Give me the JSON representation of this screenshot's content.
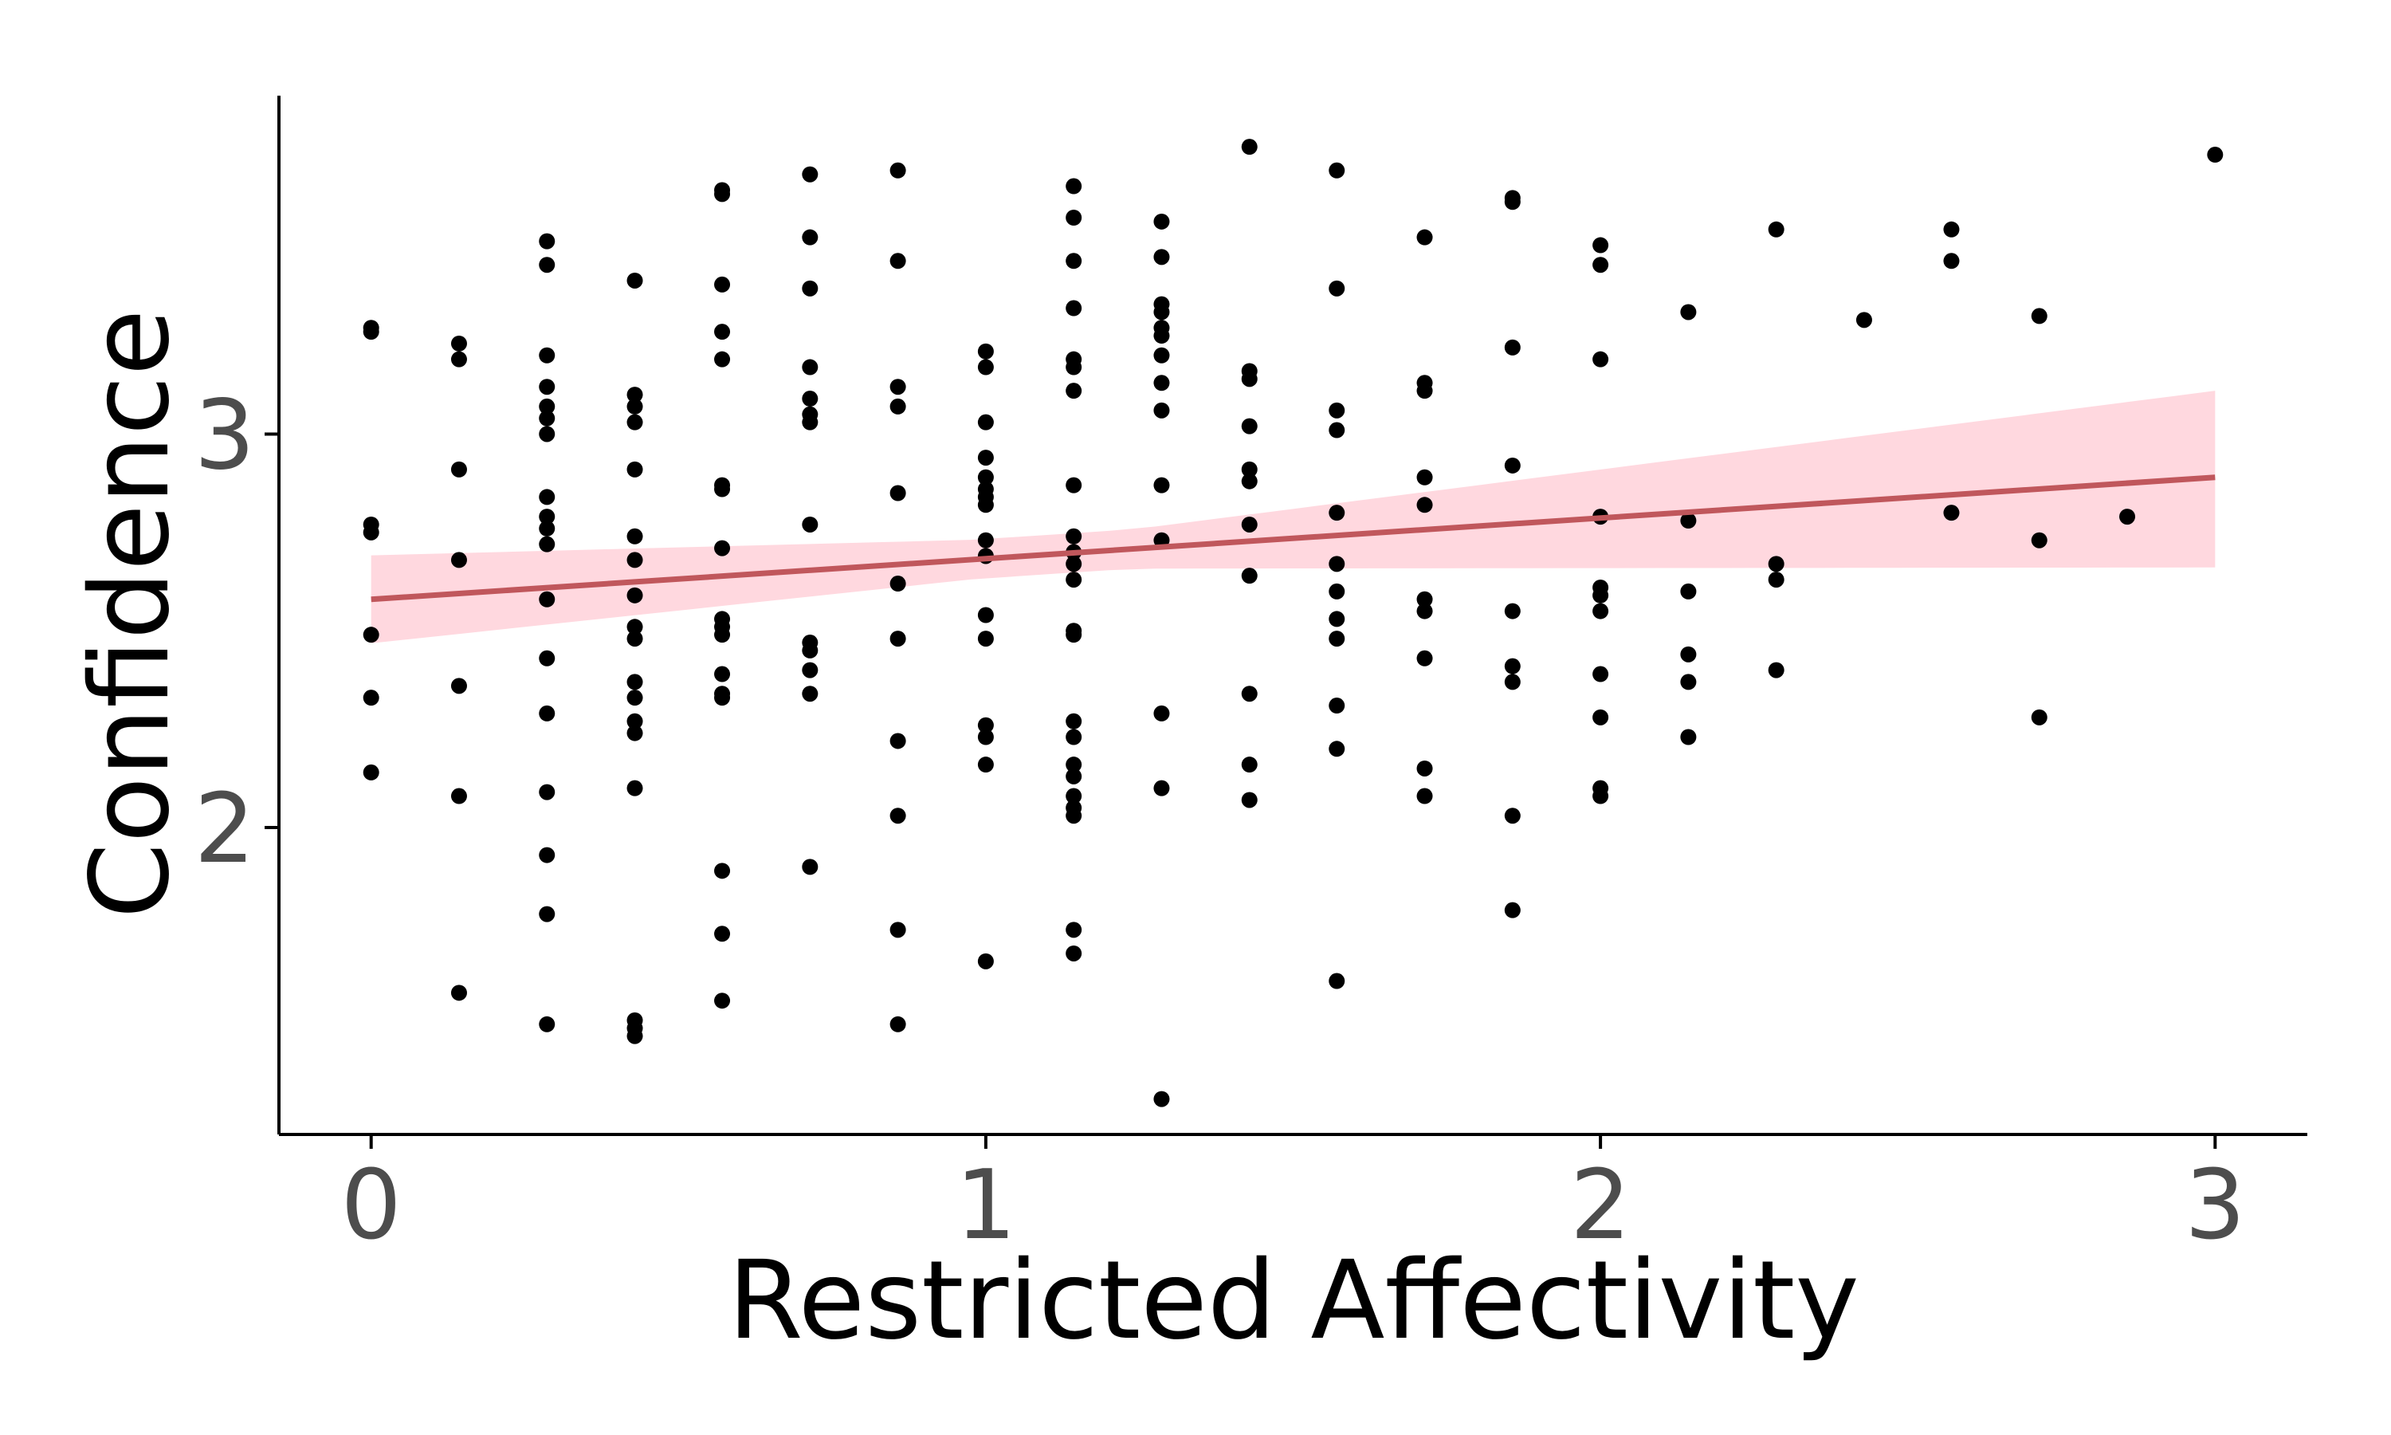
{
  "chart_data": {
    "type": "scatter",
    "xlabel": "Restricted Affectivity",
    "ylabel": "Confidence",
    "xlim": [
      -0.15,
      3.15
    ],
    "ylim": [
      1.22,
      3.86
    ],
    "x_ticks": [
      "0",
      "1",
      "2",
      "3"
    ],
    "y_ticks": [
      "2",
      "3"
    ],
    "grid": false,
    "legend": "none",
    "colors": {
      "points": "#000000",
      "line": "#c0575c",
      "band": "#ffd8df",
      "axis": "#000000",
      "tick_text": "#4d4d4d"
    },
    "fit": {
      "x": [
        0,
        3
      ],
      "y": [
        2.58,
        2.89
      ],
      "ci_lower": [
        2.45,
        2.68
      ],
      "ci_upper": [
        2.71,
        3.09
      ]
    },
    "points": [
      [
        0,
        3.27
      ],
      [
        0,
        3.26
      ],
      [
        0,
        2.77
      ],
      [
        0,
        2.75
      ],
      [
        0,
        2.49
      ],
      [
        0,
        2.33
      ],
      [
        0,
        2.14
      ],
      [
        0.143,
        3.23
      ],
      [
        0.143,
        3.19
      ],
      [
        0.143,
        2.91
      ],
      [
        0.143,
        2.68
      ],
      [
        0.143,
        2.36
      ],
      [
        0.143,
        2.08
      ],
      [
        0.143,
        1.58
      ],
      [
        0.286,
        3.49
      ],
      [
        0.286,
        3.43
      ],
      [
        0.286,
        3.2
      ],
      [
        0.286,
        3.12
      ],
      [
        0.286,
        3.07
      ],
      [
        0.286,
        3.04
      ],
      [
        0.286,
        3.0
      ],
      [
        0.286,
        2.84
      ],
      [
        0.286,
        2.79
      ],
      [
        0.286,
        2.76
      ],
      [
        0.286,
        2.72
      ],
      [
        0.286,
        2.58
      ],
      [
        0.286,
        2.43
      ],
      [
        0.286,
        2.29
      ],
      [
        0.286,
        2.09
      ],
      [
        0.286,
        1.93
      ],
      [
        0.286,
        1.78
      ],
      [
        0.286,
        1.5
      ],
      [
        0.429,
        3.39
      ],
      [
        0.429,
        3.1
      ],
      [
        0.429,
        3.07
      ],
      [
        0.429,
        3.03
      ],
      [
        0.429,
        2.91
      ],
      [
        0.429,
        2.74
      ],
      [
        0.429,
        2.68
      ],
      [
        0.429,
        2.59
      ],
      [
        0.429,
        2.51
      ],
      [
        0.429,
        2.48
      ],
      [
        0.429,
        2.37
      ],
      [
        0.429,
        2.33
      ],
      [
        0.429,
        2.27
      ],
      [
        0.429,
        2.24
      ],
      [
        0.429,
        2.1
      ],
      [
        0.429,
        1.51
      ],
      [
        0.429,
        1.49
      ],
      [
        0.429,
        1.47
      ],
      [
        0.571,
        3.62
      ],
      [
        0.571,
        3.61
      ],
      [
        0.571,
        3.38
      ],
      [
        0.571,
        3.26
      ],
      [
        0.571,
        3.19
      ],
      [
        0.571,
        2.87
      ],
      [
        0.571,
        2.86
      ],
      [
        0.571,
        2.71
      ],
      [
        0.571,
        2.53
      ],
      [
        0.571,
        2.51
      ],
      [
        0.571,
        2.49
      ],
      [
        0.571,
        2.39
      ],
      [
        0.571,
        2.34
      ],
      [
        0.571,
        2.33
      ],
      [
        0.571,
        1.89
      ],
      [
        0.571,
        1.73
      ],
      [
        0.571,
        1.56
      ],
      [
        0.714,
        3.66
      ],
      [
        0.714,
        3.5
      ],
      [
        0.714,
        3.37
      ],
      [
        0.714,
        3.17
      ],
      [
        0.714,
        3.09
      ],
      [
        0.714,
        3.05
      ],
      [
        0.714,
        3.03
      ],
      [
        0.714,
        2.77
      ],
      [
        0.714,
        2.47
      ],
      [
        0.714,
        2.45
      ],
      [
        0.714,
        2.4
      ],
      [
        0.714,
        2.34
      ],
      [
        0.714,
        1.9
      ],
      [
        0.857,
        3.67
      ],
      [
        0.857,
        3.44
      ],
      [
        0.857,
        3.12
      ],
      [
        0.857,
        3.07
      ],
      [
        0.857,
        2.85
      ],
      [
        0.857,
        2.62
      ],
      [
        0.857,
        2.48
      ],
      [
        0.857,
        2.22
      ],
      [
        0.857,
        2.03
      ],
      [
        0.857,
        1.74
      ],
      [
        0.857,
        1.5
      ],
      [
        1,
        3.21
      ],
      [
        1,
        3.17
      ],
      [
        1,
        3.03
      ],
      [
        1,
        2.94
      ],
      [
        1,
        2.89
      ],
      [
        1,
        2.86
      ],
      [
        1,
        2.84
      ],
      [
        1,
        2.82
      ],
      [
        1,
        2.73
      ],
      [
        1,
        2.69
      ],
      [
        1,
        2.54
      ],
      [
        1,
        2.48
      ],
      [
        1,
        2.26
      ],
      [
        1,
        2.23
      ],
      [
        1,
        2.16
      ],
      [
        1,
        1.66
      ],
      [
        1.143,
        3.63
      ],
      [
        1.143,
        3.55
      ],
      [
        1.143,
        3.44
      ],
      [
        1.143,
        3.32
      ],
      [
        1.143,
        3.19
      ],
      [
        1.143,
        3.17
      ],
      [
        1.143,
        3.11
      ],
      [
        1.143,
        2.87
      ],
      [
        1.143,
        2.74
      ],
      [
        1.143,
        2.7
      ],
      [
        1.143,
        2.67
      ],
      [
        1.143,
        2.63
      ],
      [
        1.143,
        2.5
      ],
      [
        1.143,
        2.49
      ],
      [
        1.143,
        2.27
      ],
      [
        1.143,
        2.23
      ],
      [
        1.143,
        2.16
      ],
      [
        1.143,
        2.13
      ],
      [
        1.143,
        2.08
      ],
      [
        1.143,
        2.05
      ],
      [
        1.143,
        2.03
      ],
      [
        1.143,
        1.74
      ],
      [
        1.143,
        1.68
      ],
      [
        1.286,
        3.54
      ],
      [
        1.286,
        3.45
      ],
      [
        1.286,
        3.33
      ],
      [
        1.286,
        3.31
      ],
      [
        1.286,
        3.27
      ],
      [
        1.286,
        3.25
      ],
      [
        1.286,
        3.2
      ],
      [
        1.286,
        3.13
      ],
      [
        1.286,
        3.06
      ],
      [
        1.286,
        2.87
      ],
      [
        1.286,
        2.73
      ],
      [
        1.286,
        2.29
      ],
      [
        1.286,
        2.1
      ],
      [
        1.286,
        1.31
      ],
      [
        1.429,
        3.73
      ],
      [
        1.429,
        3.16
      ],
      [
        1.429,
        3.14
      ],
      [
        1.429,
        3.02
      ],
      [
        1.429,
        2.91
      ],
      [
        1.429,
        2.88
      ],
      [
        1.429,
        2.77
      ],
      [
        1.429,
        2.64
      ],
      [
        1.429,
        2.34
      ],
      [
        1.429,
        2.16
      ],
      [
        1.429,
        2.07
      ],
      [
        1.571,
        3.67
      ],
      [
        1.571,
        3.37
      ],
      [
        1.571,
        3.06
      ],
      [
        1.571,
        3.01
      ],
      [
        1.571,
        2.8
      ],
      [
        1.571,
        2.67
      ],
      [
        1.571,
        2.6
      ],
      [
        1.571,
        2.53
      ],
      [
        1.571,
        2.48
      ],
      [
        1.571,
        2.31
      ],
      [
        1.571,
        2.2
      ],
      [
        1.571,
        1.61
      ],
      [
        1.714,
        3.5
      ],
      [
        1.714,
        3.13
      ],
      [
        1.714,
        3.11
      ],
      [
        1.714,
        2.89
      ],
      [
        1.714,
        2.82
      ],
      [
        1.714,
        2.58
      ],
      [
        1.714,
        2.55
      ],
      [
        1.714,
        2.43
      ],
      [
        1.714,
        2.15
      ],
      [
        1.714,
        2.08
      ],
      [
        1.857,
        3.6
      ],
      [
        1.857,
        3.59
      ],
      [
        1.857,
        3.22
      ],
      [
        1.857,
        2.92
      ],
      [
        1.857,
        2.55
      ],
      [
        1.857,
        2.41
      ],
      [
        1.857,
        2.37
      ],
      [
        1.857,
        2.03
      ],
      [
        1.857,
        1.79
      ],
      [
        2,
        3.48
      ],
      [
        2,
        3.43
      ],
      [
        2,
        3.19
      ],
      [
        2,
        2.79
      ],
      [
        2,
        2.61
      ],
      [
        2,
        2.59
      ],
      [
        2,
        2.55
      ],
      [
        2,
        2.39
      ],
      [
        2,
        2.28
      ],
      [
        2,
        2.1
      ],
      [
        2,
        2.08
      ],
      [
        2.143,
        3.31
      ],
      [
        2.143,
        2.78
      ],
      [
        2.143,
        2.6
      ],
      [
        2.143,
        2.44
      ],
      [
        2.143,
        2.37
      ],
      [
        2.143,
        2.23
      ],
      [
        2.286,
        3.52
      ],
      [
        2.286,
        2.67
      ],
      [
        2.286,
        2.63
      ],
      [
        2.286,
        2.4
      ],
      [
        2.429,
        3.29
      ],
      [
        2.571,
        3.52
      ],
      [
        2.571,
        3.44
      ],
      [
        2.571,
        2.8
      ],
      [
        2.714,
        3.3
      ],
      [
        2.714,
        2.73
      ],
      [
        2.714,
        2.28
      ],
      [
        2.857,
        2.79
      ],
      [
        3,
        3.71
      ]
    ]
  }
}
